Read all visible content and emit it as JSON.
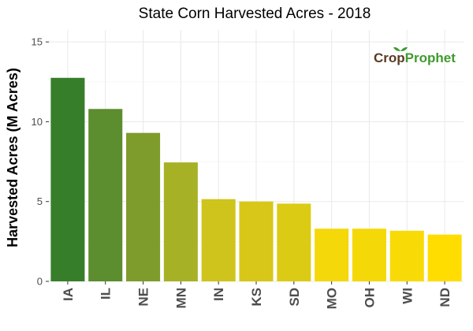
{
  "chart_data": {
    "type": "bar",
    "title": "State Corn Harvested Acres - 2018",
    "xlabel": "",
    "ylabel": "Harvested Acres (M Acres)",
    "categories": [
      "IA",
      "IL",
      "NE",
      "MN",
      "IN",
      "KS",
      "SD",
      "MO",
      "OH",
      "WI",
      "ND"
    ],
    "values": [
      12.75,
      10.8,
      9.3,
      7.45,
      5.15,
      5.0,
      4.87,
      3.3,
      3.3,
      3.17,
      2.93
    ],
    "bar_colors": [
      "#367e2a",
      "#5c8d2e",
      "#7e9c2b",
      "#a7b126",
      "#cfc41b",
      "#d8c718",
      "#dccb15",
      "#f4d80a",
      "#f5d808",
      "#f8da06",
      "#ffdd00"
    ],
    "ylim": [
      0,
      15.75
    ],
    "yticks": [
      0,
      5,
      10,
      15
    ],
    "grid": true,
    "legend": "none"
  },
  "logo": {
    "text_crop": "Crop",
    "text_prophet": "Prophet",
    "crop_color": "#5a3a22",
    "prophet_color": "#3f9a2e"
  },
  "colors": {
    "panel_background": "#ffffff",
    "grid_major": "#ebebeb",
    "grid_minor": "#f5f5f5"
  }
}
